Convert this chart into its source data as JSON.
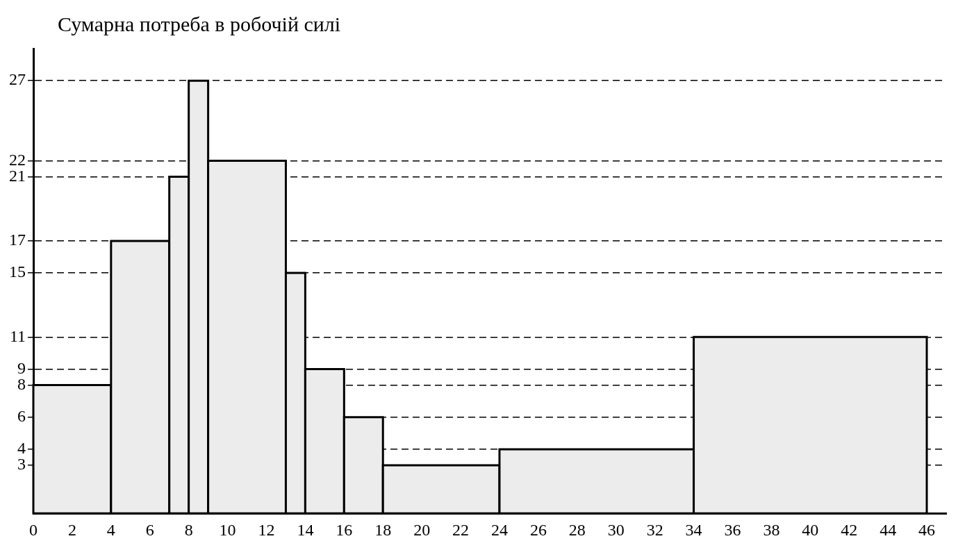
{
  "chart_data": {
    "type": "histogram",
    "ylabel": "Сумарна потреба в робочій силі",
    "bins": [
      0,
      4,
      7,
      8,
      9,
      13,
      14,
      16,
      18,
      24,
      34,
      46
    ],
    "values": [
      8,
      17,
      21,
      27,
      22,
      15,
      9,
      6,
      3,
      4,
      11
    ],
    "color": "#ececec",
    "xlim": [
      0,
      47
    ],
    "xticks": [
      0,
      2,
      4,
      6,
      8,
      10,
      12,
      14,
      16,
      18,
      20,
      22,
      24,
      26,
      28,
      30,
      32,
      34,
      36,
      38,
      40,
      42,
      44,
      46
    ],
    "ylim": [
      0,
      29
    ],
    "yticks": [
      3,
      4,
      6,
      8,
      9,
      11,
      15,
      17,
      21,
      22,
      27
    ],
    "grid": "y",
    "legend": false
  }
}
